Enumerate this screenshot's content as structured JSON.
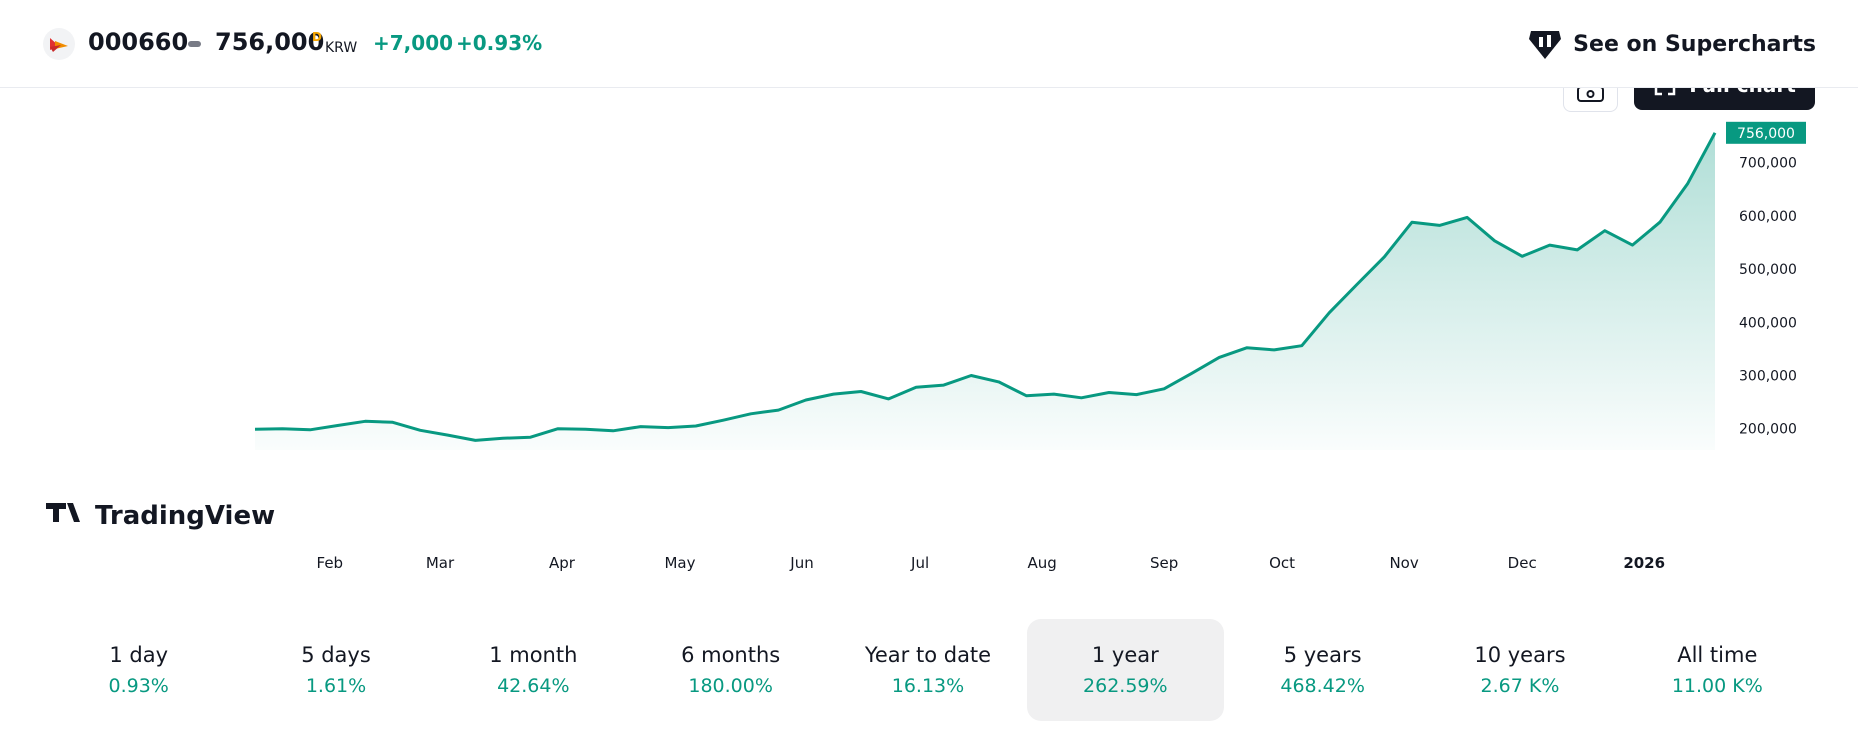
{
  "header": {
    "symbol": "000660",
    "price": "756,000",
    "price_flag": "D",
    "currency": "KRW",
    "change": "+7,000",
    "change_pct": "+0.93%",
    "supercharts_label": "See on Supercharts"
  },
  "toolbar": {
    "full_chart_label": "Full chart"
  },
  "colors": {
    "accent": "#089981",
    "dark": "#131722",
    "flag": "#f7a600"
  },
  "chart_data": {
    "type": "area",
    "title": "",
    "xlabel": "",
    "ylabel": "",
    "ylim": [
      160000,
      780000
    ],
    "y_ticks": [
      200000,
      300000,
      400000,
      500000,
      600000,
      700000
    ],
    "y_tick_labels": [
      "200,000",
      "300,000",
      "400,000",
      "500,000",
      "600,000",
      "700,000"
    ],
    "x_tick_labels": [
      "Feb",
      "Mar",
      "Apr",
      "May",
      "Jun",
      "Jul",
      "Aug",
      "Sep",
      "Oct",
      "Nov",
      "Dec",
      "2026"
    ],
    "last_value_label": "756,000",
    "watermark": "TradingView",
    "series": [
      {
        "x": [
          "2025-01-13",
          "2025-01-20",
          "2025-01-27",
          "2025-02-03",
          "2025-02-10",
          "2025-02-17",
          "2025-02-24",
          "2025-03-03",
          "2025-03-10",
          "2025-03-17",
          "2025-03-24",
          "2025-03-31",
          "2025-04-07",
          "2025-04-14",
          "2025-04-21",
          "2025-04-28",
          "2025-05-05",
          "2025-05-12",
          "2025-05-19",
          "2025-05-26",
          "2025-06-02",
          "2025-06-09",
          "2025-06-16",
          "2025-06-23",
          "2025-06-30",
          "2025-07-07",
          "2025-07-14",
          "2025-07-21",
          "2025-07-28",
          "2025-08-04",
          "2025-08-11",
          "2025-08-18",
          "2025-08-25",
          "2025-09-01",
          "2025-09-08",
          "2025-09-15",
          "2025-09-22",
          "2025-09-29",
          "2025-10-06",
          "2025-10-13",
          "2025-10-20",
          "2025-10-27",
          "2025-11-03",
          "2025-11-10",
          "2025-11-17",
          "2025-11-24",
          "2025-12-01",
          "2025-12-08",
          "2025-12-15",
          "2025-12-22",
          "2025-12-29",
          "2026-01-05",
          "2026-01-12",
          "2026-01-19"
        ],
        "values": [
          199000,
          200000,
          198000,
          206000,
          214000,
          212000,
          197000,
          188000,
          178000,
          182000,
          184000,
          200000,
          199000,
          196000,
          204000,
          202000,
          205000,
          216000,
          228000,
          235000,
          254000,
          265000,
          270000,
          256000,
          278000,
          282000,
          300000,
          288000,
          262000,
          265000,
          258000,
          268000,
          264000,
          275000,
          304000,
          334000,
          352000,
          348000,
          356000,
          418000,
          471000,
          523000,
          588000,
          582000,
          597000,
          553000,
          524000,
          545000,
          536000,
          572000,
          545000,
          588000,
          660000,
          756000
        ]
      }
    ]
  },
  "periods": [
    {
      "label": "1 day",
      "value": "0.93%"
    },
    {
      "label": "5 days",
      "value": "1.61%"
    },
    {
      "label": "1 month",
      "value": "42.64%"
    },
    {
      "label": "6 months",
      "value": "180.00%"
    },
    {
      "label": "Year to date",
      "value": "16.13%"
    },
    {
      "label": "1 year",
      "value": "262.59%",
      "selected": true
    },
    {
      "label": "5 years",
      "value": "468.42%"
    },
    {
      "label": "10 years",
      "value": "2.67 K%"
    },
    {
      "label": "All time",
      "value": "11.00 K%"
    }
  ]
}
